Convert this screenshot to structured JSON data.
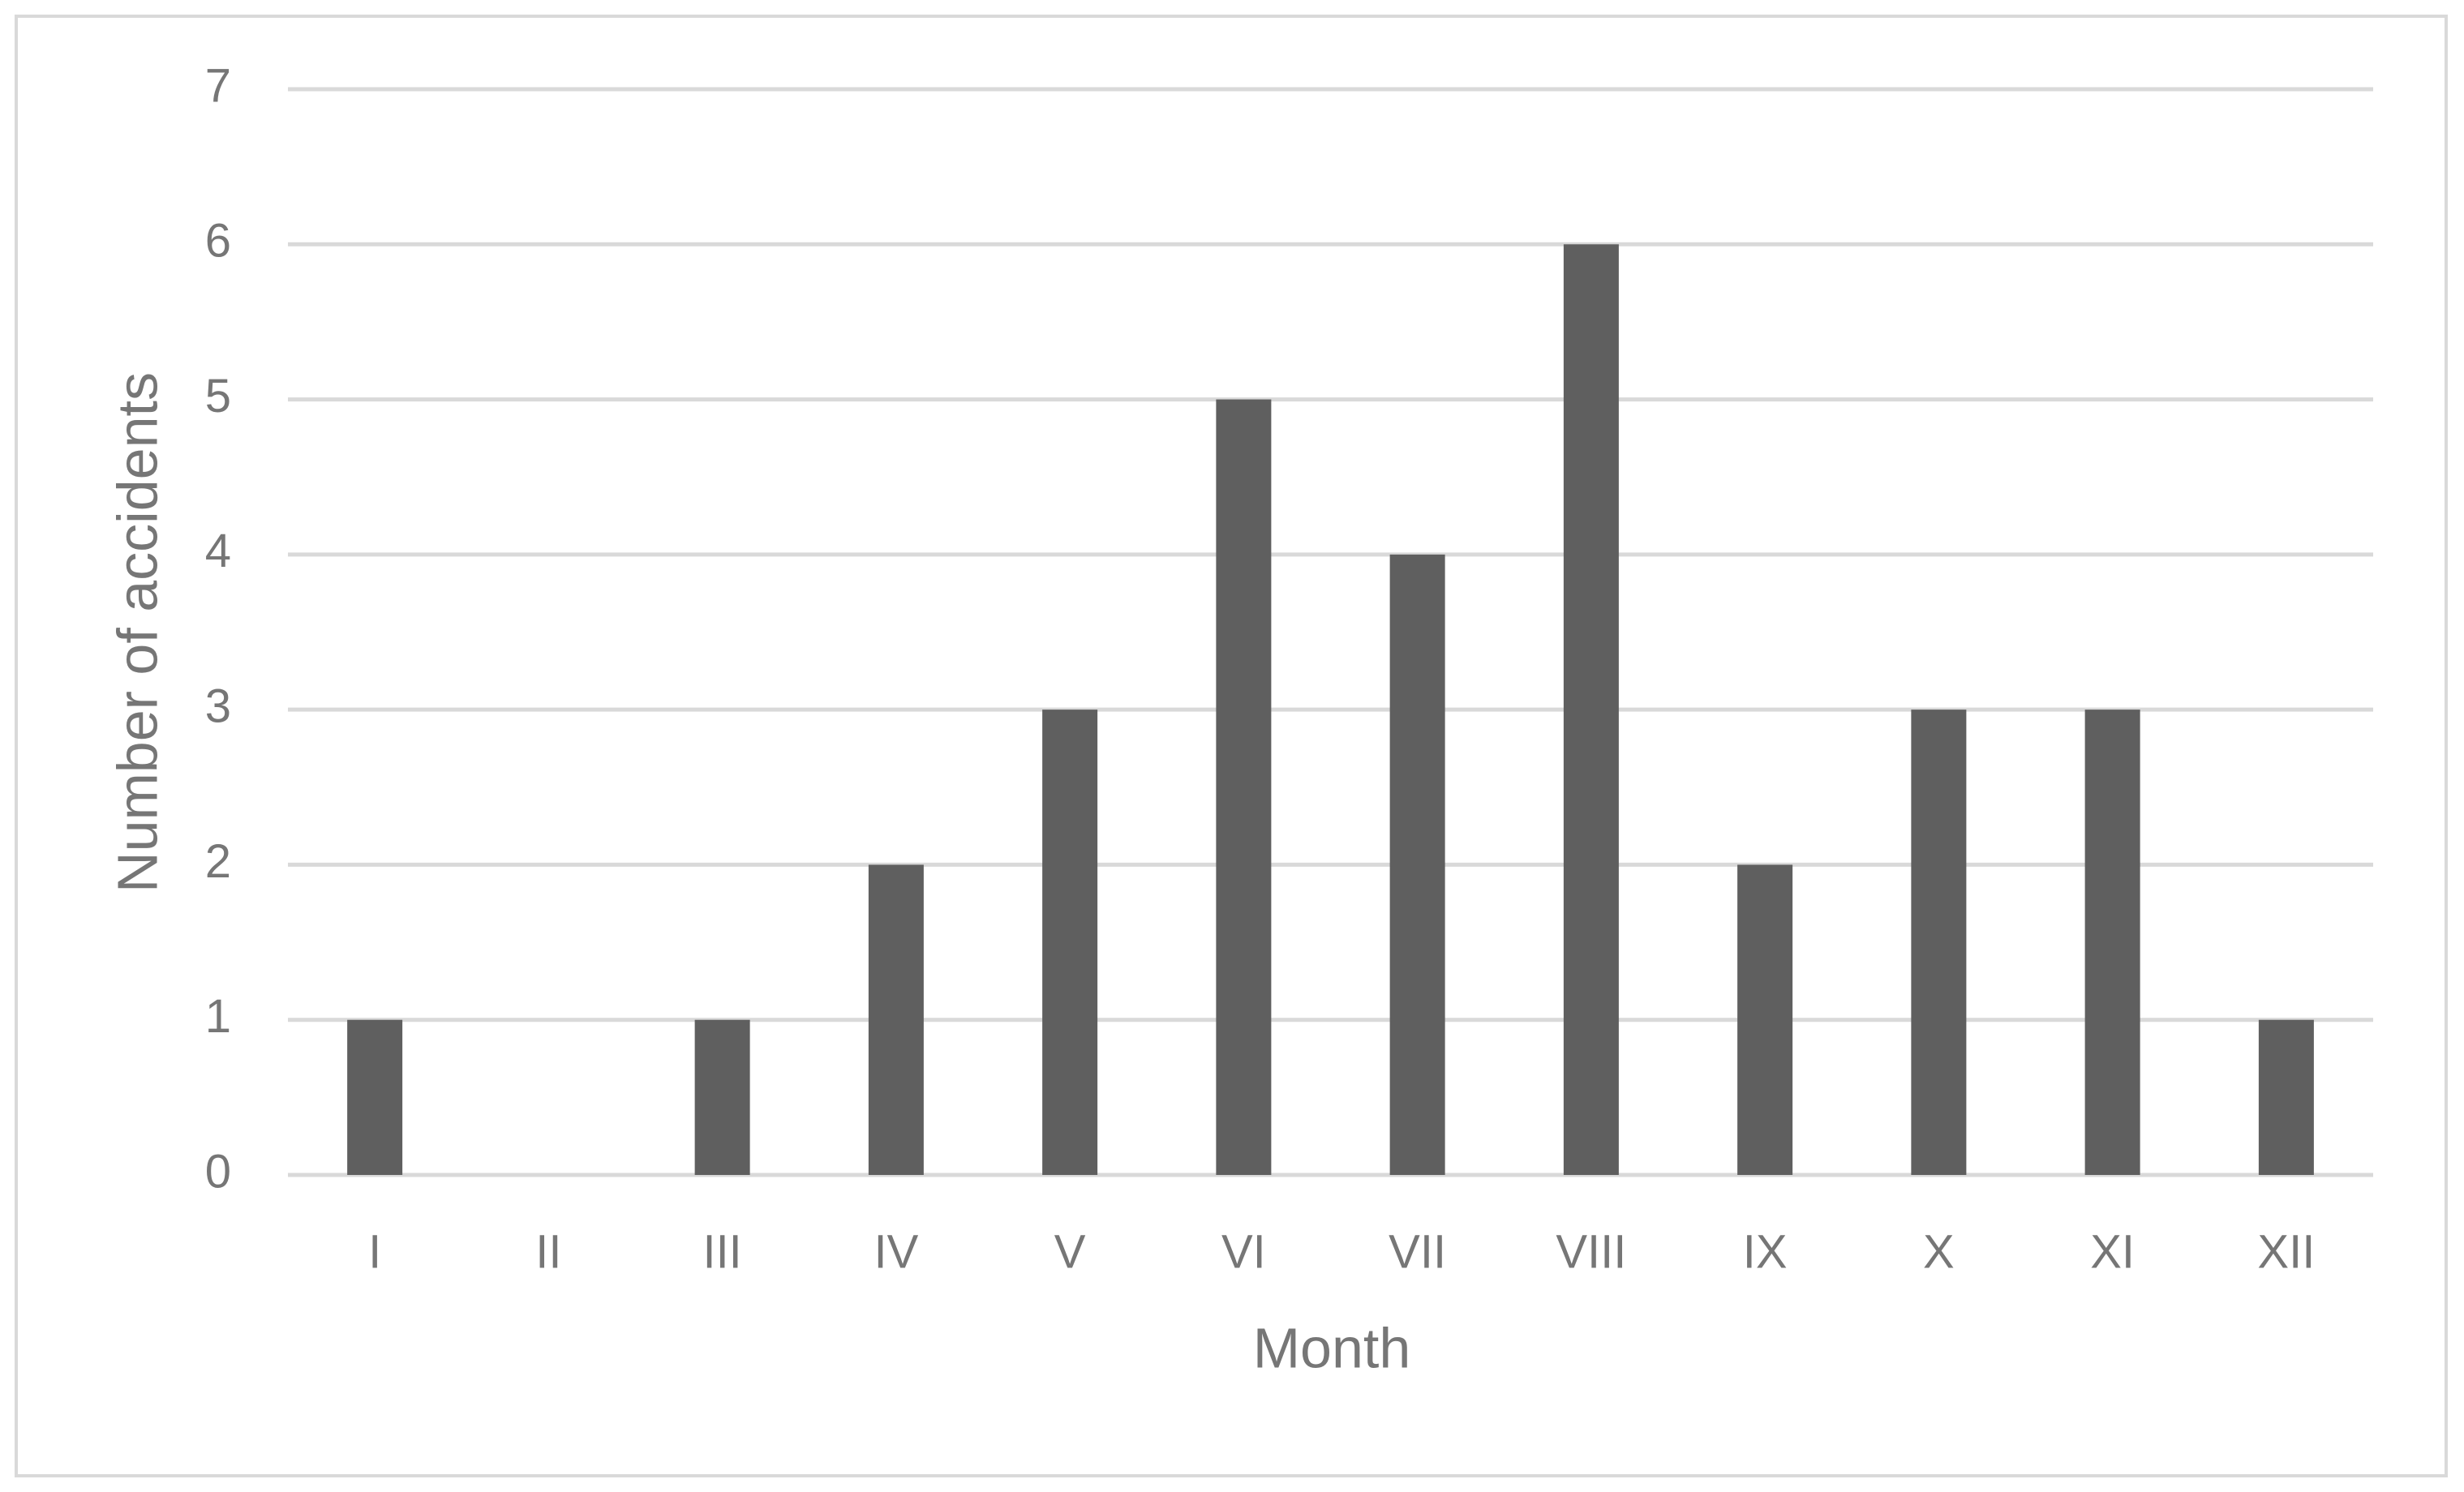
{
  "chart_data": {
    "type": "bar",
    "x_label": "Month",
    "y_label": "Number of accidents",
    "categories": [
      "I",
      "II",
      "III",
      "IV",
      "V",
      "VI",
      "VII",
      "VIII",
      "IX",
      "X",
      "XI",
      "XII"
    ],
    "values": [
      1,
      0,
      1,
      2,
      3,
      5,
      4,
      6,
      2,
      3,
      3,
      1
    ],
    "color": "#5f5f5f",
    "ylim": [
      0,
      7
    ],
    "yticks": [
      0,
      1,
      2,
      3,
      4,
      5,
      6,
      7
    ],
    "grid": true
  }
}
